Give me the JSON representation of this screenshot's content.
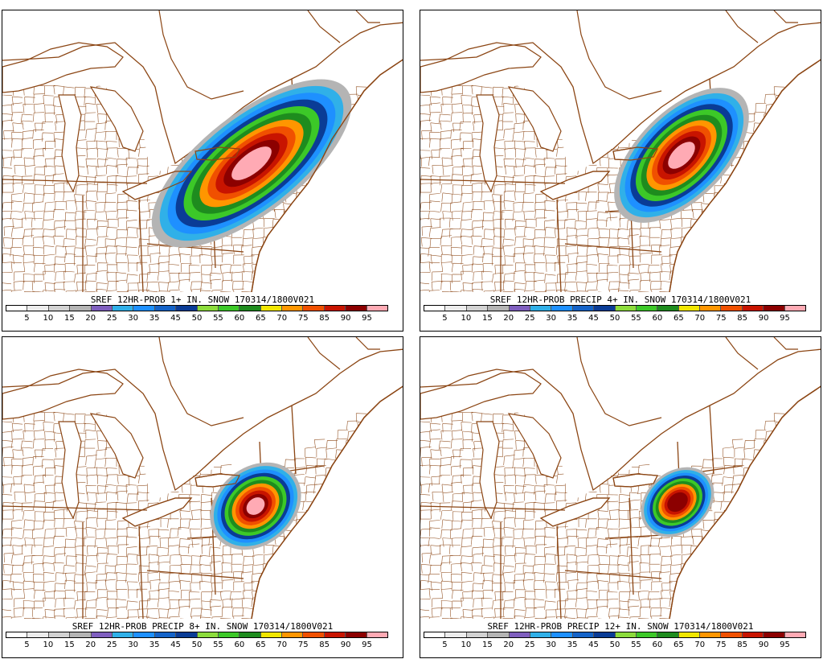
{
  "panels": [
    {
      "caption": "SREF 12HR-PROB 1+ IN. SNOW 170314/1800V021"
    },
    {
      "caption": "SREF 12HR-PROB PRECIP 4+ IN. SNOW 170314/1800V021"
    },
    {
      "caption": "SREF 12HR-PROB PRECIP 8+ IN. SNOW 170314/1800V021"
    },
    {
      "caption": "SREF 12HR-PROB PRECIP 12+ IN. SNOW 170314/1800V021"
    }
  ],
  "legend": {
    "ticks": [
      "5",
      "10",
      "15",
      "20",
      "25",
      "30",
      "35",
      "45",
      "50",
      "55",
      "60",
      "65",
      "70",
      "75",
      "85",
      "90",
      "95"
    ],
    "colors": [
      "#ffffff",
      "#ececec",
      "#d2d2d2",
      "#b4b4b4",
      "#7f5fbf",
      "#30b0e8",
      "#1e90ff",
      "#1463c8",
      "#0a3c96",
      "#8cdc3c",
      "#3cc828",
      "#1e8c1e",
      "#f0e600",
      "#ff9600",
      "#f05000",
      "#c81400",
      "#8c0000",
      "#ffaab4"
    ]
  },
  "map": {
    "border_color": "#8b4513",
    "snow_probability_regions": [
      {
        "panel": 1,
        "peak": "95"
      },
      {
        "panel": 2,
        "peak": "95"
      },
      {
        "panel": 3,
        "peak": "95"
      },
      {
        "panel": 4,
        "peak": "90"
      }
    ]
  }
}
